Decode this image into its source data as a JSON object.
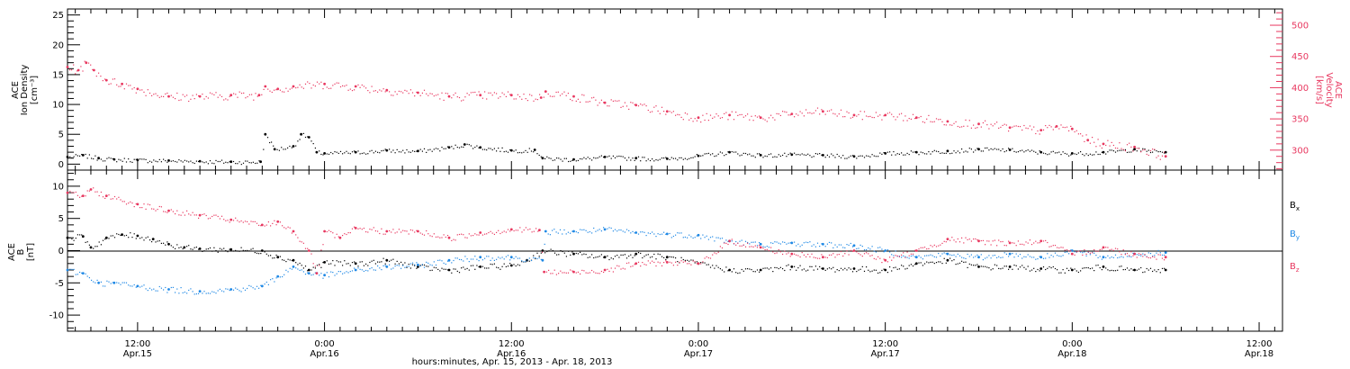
{
  "figure": {
    "xlabel": "hours:minutes, Apr. 15, 2013 - Apr. 18, 2013",
    "x_ticks": [
      {
        "time": "12:00",
        "date": "Apr.15",
        "hour": 12
      },
      {
        "time": "0:00",
        "date": "Apr.16",
        "hour": 24
      },
      {
        "time": "12:00",
        "date": "Apr.16",
        "hour": 36
      },
      {
        "time": "0:00",
        "date": "Apr.17",
        "hour": 48
      },
      {
        "time": "12:00",
        "date": "Apr.17",
        "hour": 60
      },
      {
        "time": "0:00",
        "date": "Apr.18",
        "hour": 72
      },
      {
        "time": "12:00",
        "date": "Apr.18",
        "hour": 84
      }
    ]
  },
  "colors": {
    "black": "#000000",
    "pink": "#e8375f",
    "blue": "#1e88e5"
  },
  "chart_data": [
    {
      "type": "scatter",
      "xlim_hours_since_apr15_0000": [
        7.5,
        85.5
      ],
      "left_axis": {
        "label_lines": [
          "ACE",
          "Ion Density",
          "[cm⁻³]"
        ],
        "ylim": [
          -1,
          26
        ],
        "ticks": [
          0,
          5,
          10,
          15,
          20,
          25
        ]
      },
      "right_axis": {
        "label_lines": [
          "ACE",
          "Velocity",
          "[km/s]"
        ],
        "ylim": [
          268,
          526
        ],
        "ticks": [
          300,
          350,
          400,
          450,
          500
        ]
      },
      "series": [
        {
          "axis": "left",
          "color": "black",
          "points": [
            [
              7.5,
              1.2
            ],
            [
              8.5,
              1.5
            ],
            [
              9.5,
              1.0
            ],
            [
              10.5,
              0.8
            ],
            [
              12,
              0.7
            ],
            [
              14,
              0.6
            ],
            [
              16,
              0.5
            ],
            [
              18,
              0.4
            ],
            [
              19.9,
              0.4
            ],
            [
              20.2,
              5.0
            ],
            [
              20.8,
              2.5
            ],
            [
              22,
              3.0
            ],
            [
              22.5,
              5.0
            ],
            [
              23,
              4.5
            ],
            [
              23.5,
              2.0
            ],
            [
              24,
              1.8
            ],
            [
              26,
              2.0
            ],
            [
              28,
              2.3
            ],
            [
              30,
              2.2
            ],
            [
              32,
              2.8
            ],
            [
              33,
              3.3
            ],
            [
              34,
              2.8
            ],
            [
              36,
              2.3
            ],
            [
              37.5,
              2.4
            ],
            [
              38,
              1.0
            ],
            [
              40,
              0.8
            ],
            [
              42,
              1.2
            ],
            [
              44,
              1.0
            ],
            [
              46,
              0.9
            ],
            [
              48,
              1.4
            ],
            [
              50,
              2.0
            ],
            [
              52,
              1.5
            ],
            [
              54,
              1.6
            ],
            [
              56,
              1.5
            ],
            [
              58,
              1.3
            ],
            [
              60,
              1.8
            ],
            [
              62,
              2.0
            ],
            [
              64,
              2.2
            ],
            [
              66,
              2.5
            ],
            [
              68,
              2.4
            ],
            [
              70,
              2.0
            ],
            [
              72,
              1.8
            ],
            [
              74,
              2.0
            ],
            [
              76,
              2.5
            ],
            [
              78,
              2.0
            ]
          ]
        },
        {
          "axis": "right",
          "color": "pink",
          "points": [
            [
              7.5,
              433
            ],
            [
              8.2,
              428
            ],
            [
              8.7,
              440
            ],
            [
              9.2,
              428
            ],
            [
              10,
              412
            ],
            [
              11,
              406
            ],
            [
              12,
              398
            ],
            [
              14,
              386
            ],
            [
              16,
              386
            ],
            [
              18,
              388
            ],
            [
              19.8,
              388
            ],
            [
              20.2,
              402
            ],
            [
              21,
              398
            ],
            [
              22,
              402
            ],
            [
              24,
              406
            ],
            [
              26,
              402
            ],
            [
              28,
              396
            ],
            [
              30,
              392
            ],
            [
              32,
              386
            ],
            [
              34,
              388
            ],
            [
              36,
              388
            ],
            [
              37.9,
              384
            ],
            [
              38.2,
              394
            ],
            [
              40,
              386
            ],
            [
              42,
              376
            ],
            [
              44,
              372
            ],
            [
              46,
              362
            ],
            [
              48,
              352
            ],
            [
              50,
              356
            ],
            [
              52,
              352
            ],
            [
              54,
              358
            ],
            [
              56,
              362
            ],
            [
              58,
              356
            ],
            [
              60,
              356
            ],
            [
              62,
              352
            ],
            [
              64,
              346
            ],
            [
              66,
              342
            ],
            [
              68,
              336
            ],
            [
              70,
              332
            ],
            [
              71,
              338
            ],
            [
              72,
              334
            ],
            [
              73,
              316
            ],
            [
              74,
              310
            ],
            [
              76,
              305
            ],
            [
              78,
              290
            ]
          ]
        }
      ]
    },
    {
      "type": "scatter",
      "xlim_hours_since_apr15_0000": [
        7.5,
        85.5
      ],
      "left_axis": {
        "label_lines": [
          "ACE",
          "B",
          "[nT]"
        ],
        "ylim": [
          -12.5,
          12.5
        ],
        "ticks": [
          -10,
          -5,
          0,
          5,
          10
        ]
      },
      "legend": [
        {
          "label": "B",
          "subscript": "x",
          "color": "black"
        },
        {
          "label": "B",
          "subscript": "y",
          "color": "blue"
        },
        {
          "label": "B",
          "subscript": "z",
          "color": "pink"
        }
      ],
      "series": [
        {
          "color": "black",
          "points": [
            [
              7.5,
              2.0
            ],
            [
              8.5,
              2.2
            ],
            [
              9,
              0.5
            ],
            [
              10,
              2.0
            ],
            [
              11,
              2.5
            ],
            [
              12,
              2.3
            ],
            [
              13,
              1.8
            ],
            [
              14,
              1.0
            ],
            [
              15,
              0.5
            ],
            [
              16,
              0.3
            ],
            [
              18,
              0.2
            ],
            [
              20,
              0.0
            ],
            [
              21,
              -1.0
            ],
            [
              22,
              -1.5
            ],
            [
              23,
              -3.0
            ],
            [
              24,
              -1.8
            ],
            [
              26,
              -2.0
            ],
            [
              28,
              -1.5
            ],
            [
              30,
              -2.5
            ],
            [
              32,
              -3.0
            ],
            [
              34,
              -2.5
            ],
            [
              36,
              -2.3
            ],
            [
              37,
              -1.5
            ],
            [
              38,
              0.0
            ],
            [
              40,
              -0.5
            ],
            [
              42,
              -1.0
            ],
            [
              44,
              -0.5
            ],
            [
              46,
              -1.0
            ],
            [
              48,
              -2.0
            ],
            [
              50,
              -3.0
            ],
            [
              52,
              -3.0
            ],
            [
              54,
              -2.5
            ],
            [
              56,
              -2.8
            ],
            [
              58,
              -2.8
            ],
            [
              60,
              -3.0
            ],
            [
              62,
              -2.0
            ],
            [
              64,
              -1.5
            ],
            [
              66,
              -2.5
            ],
            [
              68,
              -2.5
            ],
            [
              70,
              -2.8
            ],
            [
              72,
              -3.0
            ],
            [
              74,
              -2.5
            ],
            [
              76,
              -3.0
            ],
            [
              78,
              -3.0
            ]
          ]
        },
        {
          "color": "blue",
          "points": [
            [
              7.5,
              -3.0
            ],
            [
              8.5,
              -3.5
            ],
            [
              9.5,
              -5.0
            ],
            [
              10.5,
              -5.0
            ],
            [
              12,
              -5.5
            ],
            [
              14,
              -6.0
            ],
            [
              16,
              -6.3
            ],
            [
              18,
              -6.0
            ],
            [
              20,
              -5.5
            ],
            [
              21,
              -4.0
            ],
            [
              22,
              -2.5
            ],
            [
              23,
              -3.5
            ],
            [
              24,
              -3.8
            ],
            [
              26,
              -3.0
            ],
            [
              28,
              -2.5
            ],
            [
              30,
              -2.2
            ],
            [
              32,
              -1.5
            ],
            [
              34,
              -1.0
            ],
            [
              36,
              -1.0
            ],
            [
              38,
              -1.5
            ],
            [
              38.2,
              3.0
            ],
            [
              40,
              3.0
            ],
            [
              42,
              3.3
            ],
            [
              44,
              2.8
            ],
            [
              46,
              2.6
            ],
            [
              48,
              2.4
            ],
            [
              50,
              1.5
            ],
            [
              52,
              1.0
            ],
            [
              54,
              1.2
            ],
            [
              56,
              1.0
            ],
            [
              58,
              0.8
            ],
            [
              60,
              0.0
            ],
            [
              62,
              -1.0
            ],
            [
              64,
              -0.5
            ],
            [
              66,
              -1.0
            ],
            [
              68,
              -0.5
            ],
            [
              70,
              -1.0
            ],
            [
              72,
              0.0
            ],
            [
              74,
              -1.0
            ],
            [
              76,
              -0.5
            ],
            [
              78,
              -0.3
            ]
          ]
        },
        {
          "color": "pink",
          "points": [
            [
              7.5,
              9.0
            ],
            [
              8.5,
              8.5
            ],
            [
              9,
              9.5
            ],
            [
              10,
              8.5
            ],
            [
              12,
              7.2
            ],
            [
              14,
              6.2
            ],
            [
              16,
              5.5
            ],
            [
              18,
              4.8
            ],
            [
              20,
              4.0
            ],
            [
              21,
              4.5
            ],
            [
              22,
              3.0
            ],
            [
              23,
              0.0
            ],
            [
              23.5,
              -3.5
            ],
            [
              24,
              3.0
            ],
            [
              25,
              2.0
            ],
            [
              26,
              3.5
            ],
            [
              28,
              3.0
            ],
            [
              30,
              3.0
            ],
            [
              32,
              2.0
            ],
            [
              34,
              2.8
            ],
            [
              36,
              3.3
            ],
            [
              37.8,
              3.2
            ],
            [
              38.1,
              -3.3
            ],
            [
              40,
              -3.3
            ],
            [
              42,
              -3.0
            ],
            [
              44,
              -2.0
            ],
            [
              46,
              -1.8
            ],
            [
              48,
              -2.0
            ],
            [
              50,
              1.5
            ],
            [
              52,
              0.5
            ],
            [
              54,
              -0.5
            ],
            [
              56,
              -1.0
            ],
            [
              58,
              0.0
            ],
            [
              60,
              -1.5
            ],
            [
              62,
              0.0
            ],
            [
              64,
              1.8
            ],
            [
              66,
              1.5
            ],
            [
              68,
              1.2
            ],
            [
              70,
              1.5
            ],
            [
              72,
              -0.5
            ],
            [
              74,
              0.5
            ],
            [
              76,
              -0.5
            ],
            [
              78,
              -1.0
            ]
          ]
        }
      ]
    }
  ]
}
